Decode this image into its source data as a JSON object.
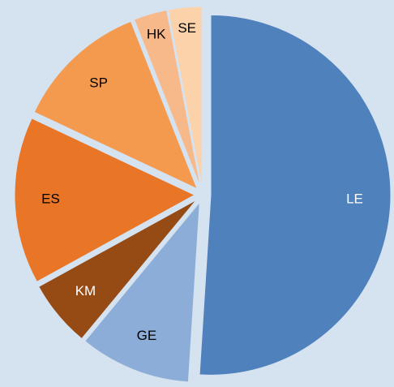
{
  "chart_data": {
    "type": "pie",
    "categories": [
      "LE",
      "GE",
      "KM",
      "ES",
      "SP",
      "HK",
      "SE"
    ],
    "values": [
      51,
      10,
      6,
      15,
      12,
      3,
      3
    ],
    "colors": [
      "#4f81bd",
      "#8cadd7",
      "#964a14",
      "#e97526",
      "#f49a4f",
      "#f8b98a",
      "#fcd2ab"
    ],
    "label_colors": [
      "#ffffff",
      "#000000",
      "#ffffff",
      "#000000",
      "#000000",
      "#000000",
      "#000000"
    ]
  }
}
